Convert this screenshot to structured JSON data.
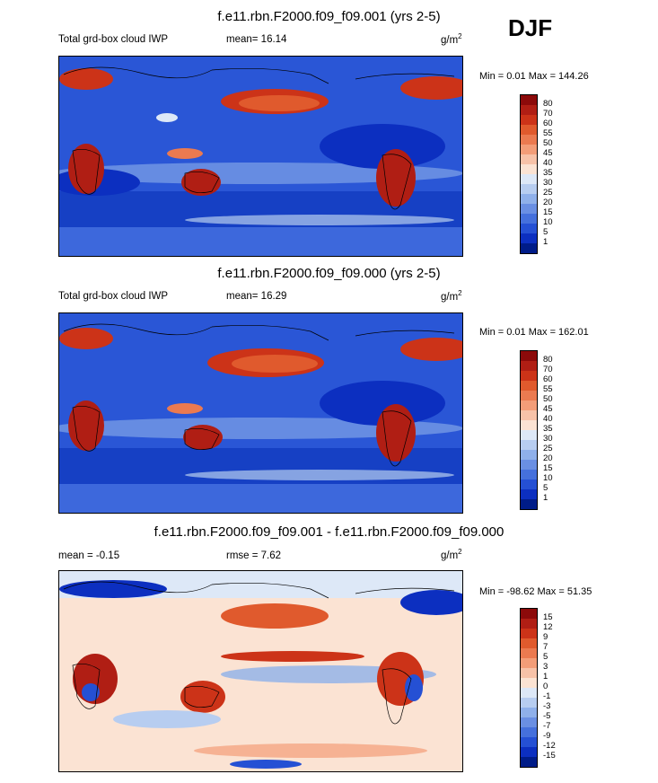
{
  "season": "DJF",
  "units_base": "g/m",
  "units_exp": "2",
  "panels": [
    {
      "title": "f.e11.rbn.F2000.f09_f09.001 (yrs 2-5)",
      "variable": "Total grd-box cloud IWP",
      "stat": "mean=  16.14",
      "minmax": "Min =   0.01 Max = 144.26"
    },
    {
      "title": "f.e11.rbn.F2000.f09_f09.000 (yrs 2-5)",
      "variable": "Total grd-box cloud IWP",
      "stat": "mean=  16.29",
      "minmax": "Min =  0.01 Max = 162.01"
    },
    {
      "title": "f.e11.rbn.F2000.f09_f09.001 - f.e11.rbn.F2000.f09_f09.000",
      "variable": "mean =  -0.15",
      "stat": "rmse =  7.62",
      "minmax": "Min = -98.62 Max =  51.35"
    }
  ],
  "colorbar_abs": {
    "labels": [
      "80",
      "70",
      "60",
      "55",
      "50",
      "45",
      "40",
      "35",
      "30",
      "25",
      "20",
      "15",
      "10",
      "5",
      "1"
    ],
    "colors": [
      "#8c0a0a",
      "#b01e14",
      "#cc3318",
      "#e05a2d",
      "#eb7a50",
      "#f39d78",
      "#f7c2a8",
      "#fbe3d3",
      "#dde8f7",
      "#b7cdf0",
      "#8fb0ea",
      "#6a8fe3",
      "#4570dc",
      "#2550d4",
      "#0c2fc0",
      "#001c88"
    ]
  },
  "colorbar_diff": {
    "labels": [
      "15",
      "12",
      "9",
      "7",
      "5",
      "3",
      "1",
      "0",
      "-1",
      "-3",
      "-5",
      "-7",
      "-9",
      "-12",
      "-15"
    ],
    "colors": [
      "#8c0a0a",
      "#b01e14",
      "#cc3318",
      "#e05a2d",
      "#eb7a50",
      "#f39d78",
      "#f7c2a8",
      "#fbe3d3",
      "#dde8f7",
      "#b7cdf0",
      "#8fb0ea",
      "#6a8fe3",
      "#4570dc",
      "#2550d4",
      "#0c2fc0",
      "#001c88"
    ]
  }
}
